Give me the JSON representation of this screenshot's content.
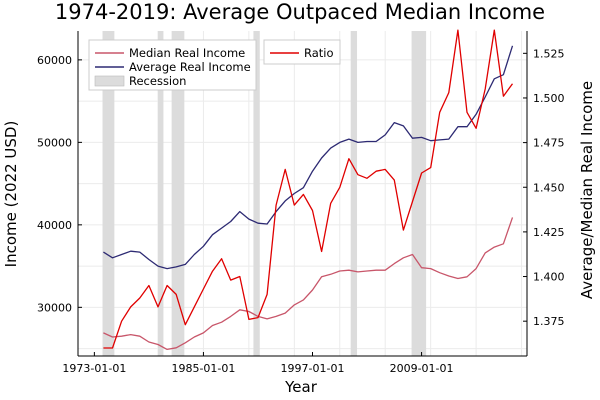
{
  "chart_data": {
    "type": "line",
    "title": "1974-2019: Average Outpaced Median Income",
    "xlabel": "Year",
    "ylabel_left": "Income (2022 USD)",
    "ylabel_right": "Average/Median Real Income",
    "x_ticks": [
      "1973-01-01",
      "1985-01-01",
      "1997-01-01",
      "2009-01-01"
    ],
    "x_tick_years": [
      1973,
      1985,
      1997,
      2009
    ],
    "x_range": [
      1971.2,
      2020.6
    ],
    "y_left_ticks": [
      30000,
      40000,
      50000,
      60000
    ],
    "y_left_range": [
      24100,
      63500
    ],
    "y_right_ticks": [
      1.375,
      1.4,
      1.425,
      1.45,
      1.475,
      1.5,
      1.525
    ],
    "y_right_range": [
      1.3555,
      1.5375
    ],
    "grid": true,
    "legend_position": "top-left",
    "years": [
      1974,
      1975,
      1976,
      1977,
      1978,
      1979,
      1980,
      1981,
      1982,
      1983,
      1984,
      1985,
      1986,
      1987,
      1988,
      1989,
      1990,
      1991,
      1992,
      1993,
      1994,
      1995,
      1996,
      1997,
      1998,
      1999,
      2000,
      2001,
      2002,
      2003,
      2004,
      2005,
      2006,
      2007,
      2008,
      2009,
      2010,
      2011,
      2012,
      2013,
      2014,
      2015,
      2016,
      2017,
      2018,
      2019
    ],
    "series": [
      {
        "name": "Median Real Income",
        "axis": "left",
        "color": "#c8566a",
        "values": [
          26900,
          26400,
          26500,
          26700,
          26500,
          25800,
          25500,
          24900,
          25100,
          25700,
          26400,
          26900,
          27800,
          28200,
          28900,
          29700,
          29500,
          28900,
          28600,
          28900,
          29300,
          30300,
          30900,
          32100,
          33700,
          34000,
          34400,
          34500,
          34300,
          34400,
          34500,
          34500,
          35300,
          36000,
          36400,
          34800,
          34700,
          34200,
          33800,
          33500,
          33700,
          34700,
          36600,
          37300,
          37700,
          40900
        ]
      },
      {
        "name": "Average Real Income",
        "axis": "left",
        "color": "#2d2a73",
        "values": [
          36700,
          36000,
          36400,
          36800,
          36700,
          35800,
          35000,
          34700,
          34900,
          35200,
          36400,
          37400,
          38800,
          39600,
          40400,
          41600,
          40700,
          40200,
          40100,
          41600,
          42900,
          43800,
          44500,
          46500,
          48100,
          49300,
          50000,
          50400,
          50000,
          50100,
          50100,
          50900,
          52400,
          52000,
          50500,
          50600,
          50200,
          50300,
          50400,
          51900,
          51900,
          53400,
          55500,
          57700,
          58200,
          61700
        ]
      },
      {
        "name": "Ratio",
        "axis": "right",
        "color": "#e00000",
        "values": [
          1.36,
          1.36,
          1.375,
          1.383,
          1.388,
          1.395,
          1.383,
          1.395,
          1.39,
          1.373,
          1.383,
          1.393,
          1.403,
          1.41,
          1.398,
          1.4,
          1.376,
          1.377,
          1.39,
          1.44,
          1.46,
          1.44,
          1.446,
          1.437,
          1.414,
          1.441,
          1.45,
          1.466,
          1.457,
          1.455,
          1.459,
          1.46,
          1.454,
          1.426,
          1.442,
          1.458,
          1.461,
          1.492,
          1.503,
          1.538,
          1.492,
          1.483,
          1.505,
          1.538,
          1.501,
          1.508
        ]
      }
    ],
    "recessions": [
      {
        "name": "Recession",
        "start": 1973.9,
        "end": 1975.2
      },
      {
        "name": "Recession",
        "start": 1980.0,
        "end": 1980.6
      },
      {
        "name": "Recession",
        "start": 1981.5,
        "end": 1982.9
      },
      {
        "name": "Recession",
        "start": 1990.5,
        "end": 1991.2
      },
      {
        "name": "Recession",
        "start": 2001.2,
        "end": 2001.9
      },
      {
        "name": "Recession",
        "start": 2007.9,
        "end": 2009.5
      }
    ],
    "legend": [
      {
        "label": "Median Real Income",
        "kind": "line",
        "color": "#c8566a"
      },
      {
        "label": "Average Real Income",
        "kind": "line",
        "color": "#2d2a73"
      },
      {
        "label": "Recession",
        "kind": "patch",
        "color": "#dcdcdc"
      },
      {
        "label": "Ratio",
        "kind": "line",
        "color": "#e00000"
      }
    ],
    "colors": {
      "grid": "#ebebeb",
      "recession": "#dcdcdc",
      "axis": "#000000"
    }
  }
}
